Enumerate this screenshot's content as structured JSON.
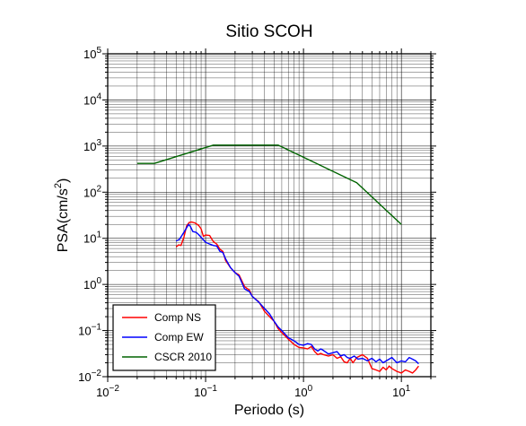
{
  "chart_data": {
    "type": "line",
    "title": "Sitio SCOH",
    "xlabel": "Periodo (s)",
    "ylabel_prefix": "PSA(cm/s",
    "ylabel_sup": "2",
    "ylabel_suffix": ")",
    "x_scale": "log",
    "y_scale": "log",
    "xlim": [
      0.01,
      20
    ],
    "ylim": [
      0.01,
      100000
    ],
    "grid": true,
    "legend_position": "bottom-left",
    "x_ticks": [
      {
        "value": 0.01,
        "base": "10",
        "exp": "−2"
      },
      {
        "value": 0.1,
        "base": "10",
        "exp": "−1"
      },
      {
        "value": 1,
        "base": "10",
        "exp": "0"
      },
      {
        "value": 10,
        "base": "10",
        "exp": "1"
      }
    ],
    "y_ticks": [
      {
        "value": 0.01,
        "base": "10",
        "exp": "−2"
      },
      {
        "value": 0.1,
        "base": "10",
        "exp": "−1"
      },
      {
        "value": 1,
        "base": "10",
        "exp": "0"
      },
      {
        "value": 10,
        "base": "10",
        "exp": "1"
      },
      {
        "value": 100,
        "base": "10",
        "exp": "2"
      },
      {
        "value": 1000,
        "base": "10",
        "exp": "3"
      },
      {
        "value": 10000,
        "base": "10",
        "exp": "4"
      },
      {
        "value": 100000,
        "base": "10",
        "exp": "5"
      }
    ],
    "series": [
      {
        "name": "Comp NS",
        "color": "#ff0000",
        "points": [
          [
            0.05,
            6.5
          ],
          [
            0.053,
            7.2
          ],
          [
            0.056,
            7.0
          ],
          [
            0.06,
            10.5
          ],
          [
            0.064,
            18.5
          ],
          [
            0.068,
            22.0
          ],
          [
            0.072,
            22.5
          ],
          [
            0.078,
            21.5
          ],
          [
            0.085,
            19.0
          ],
          [
            0.09,
            16.0
          ],
          [
            0.095,
            11.0
          ],
          [
            0.1,
            11.8
          ],
          [
            0.11,
            11.5
          ],
          [
            0.12,
            8.5
          ],
          [
            0.13,
            7.5
          ],
          [
            0.14,
            5.8
          ],
          [
            0.15,
            5.2
          ],
          [
            0.16,
            3.3
          ],
          [
            0.18,
            2.3
          ],
          [
            0.2,
            1.8
          ],
          [
            0.22,
            1.6
          ],
          [
            0.25,
            0.9
          ],
          [
            0.28,
            0.75
          ],
          [
            0.3,
            0.55
          ],
          [
            0.35,
            0.42
          ],
          [
            0.4,
            0.26
          ],
          [
            0.45,
            0.2
          ],
          [
            0.5,
            0.16
          ],
          [
            0.55,
            0.11
          ],
          [
            0.6,
            0.09
          ],
          [
            0.7,
            0.065
          ],
          [
            0.8,
            0.05
          ],
          [
            0.9,
            0.043
          ],
          [
            1.0,
            0.042
          ],
          [
            1.1,
            0.04
          ],
          [
            1.2,
            0.045
          ],
          [
            1.3,
            0.035
          ],
          [
            1.4,
            0.03
          ],
          [
            1.5,
            0.032
          ],
          [
            1.6,
            0.03
          ],
          [
            1.8,
            0.028
          ],
          [
            2.0,
            0.03
          ],
          [
            2.2,
            0.025
          ],
          [
            2.4,
            0.027
          ],
          [
            2.6,
            0.021
          ],
          [
            2.8,
            0.02
          ],
          [
            3.0,
            0.025
          ],
          [
            3.2,
            0.02
          ],
          [
            3.5,
            0.026
          ],
          [
            4.0,
            0.03
          ],
          [
            4.5,
            0.025
          ],
          [
            5.0,
            0.015
          ],
          [
            5.5,
            0.014
          ],
          [
            6.0,
            0.013
          ],
          [
            6.5,
            0.016
          ],
          [
            7.0,
            0.014
          ],
          [
            7.5,
            0.017
          ],
          [
            8.0,
            0.015
          ],
          [
            9.0,
            0.013
          ],
          [
            10.0,
            0.012
          ],
          [
            11.0,
            0.014
          ],
          [
            12.0,
            0.013
          ],
          [
            13.0,
            0.012
          ],
          [
            14.0,
            0.014
          ],
          [
            15.0,
            0.017
          ]
        ]
      },
      {
        "name": "Comp EW",
        "color": "#0000ff",
        "points": [
          [
            0.05,
            8.7
          ],
          [
            0.054,
            9.5
          ],
          [
            0.058,
            12.0
          ],
          [
            0.063,
            16.0
          ],
          [
            0.067,
            20.0
          ],
          [
            0.07,
            18.0
          ],
          [
            0.074,
            14.0
          ],
          [
            0.08,
            13.5
          ],
          [
            0.085,
            12.0
          ],
          [
            0.09,
            10.5
          ],
          [
            0.1,
            8.2
          ],
          [
            0.11,
            7.5
          ],
          [
            0.12,
            7.0
          ],
          [
            0.13,
            6.8
          ],
          [
            0.14,
            5.2
          ],
          [
            0.15,
            4.9
          ],
          [
            0.16,
            3.6
          ],
          [
            0.18,
            2.3
          ],
          [
            0.2,
            1.8
          ],
          [
            0.22,
            1.5
          ],
          [
            0.25,
            0.8
          ],
          [
            0.28,
            0.7
          ],
          [
            0.3,
            0.55
          ],
          [
            0.35,
            0.41
          ],
          [
            0.4,
            0.3
          ],
          [
            0.45,
            0.23
          ],
          [
            0.5,
            0.16
          ],
          [
            0.55,
            0.12
          ],
          [
            0.6,
            0.1
          ],
          [
            0.7,
            0.07
          ],
          [
            0.8,
            0.06
          ],
          [
            0.9,
            0.05
          ],
          [
            1.0,
            0.048
          ],
          [
            1.1,
            0.052
          ],
          [
            1.2,
            0.05
          ],
          [
            1.3,
            0.04
          ],
          [
            1.4,
            0.036
          ],
          [
            1.5,
            0.04
          ],
          [
            1.6,
            0.037
          ],
          [
            1.8,
            0.031
          ],
          [
            2.0,
            0.033
          ],
          [
            2.2,
            0.035
          ],
          [
            2.4,
            0.028
          ],
          [
            2.6,
            0.03
          ],
          [
            2.8,
            0.026
          ],
          [
            3.0,
            0.025
          ],
          [
            3.3,
            0.028
          ],
          [
            3.6,
            0.024
          ],
          [
            4.0,
            0.025
          ],
          [
            4.5,
            0.022
          ],
          [
            5.0,
            0.025
          ],
          [
            5.5,
            0.021
          ],
          [
            6.0,
            0.024
          ],
          [
            6.5,
            0.02
          ],
          [
            7.0,
            0.022
          ],
          [
            8.0,
            0.026
          ],
          [
            9.0,
            0.02
          ],
          [
            10.0,
            0.022
          ],
          [
            11.0,
            0.021
          ],
          [
            12.0,
            0.026
          ],
          [
            13.0,
            0.024
          ],
          [
            14.0,
            0.022
          ],
          [
            15.0,
            0.019
          ]
        ]
      },
      {
        "name": "CSCR 2010",
        "color": "#006400",
        "points": [
          [
            0.02,
            420
          ],
          [
            0.03,
            420
          ],
          [
            0.12,
            1050
          ],
          [
            0.55,
            1050
          ],
          [
            3.5,
            160
          ],
          [
            10.0,
            20
          ]
        ]
      }
    ]
  }
}
